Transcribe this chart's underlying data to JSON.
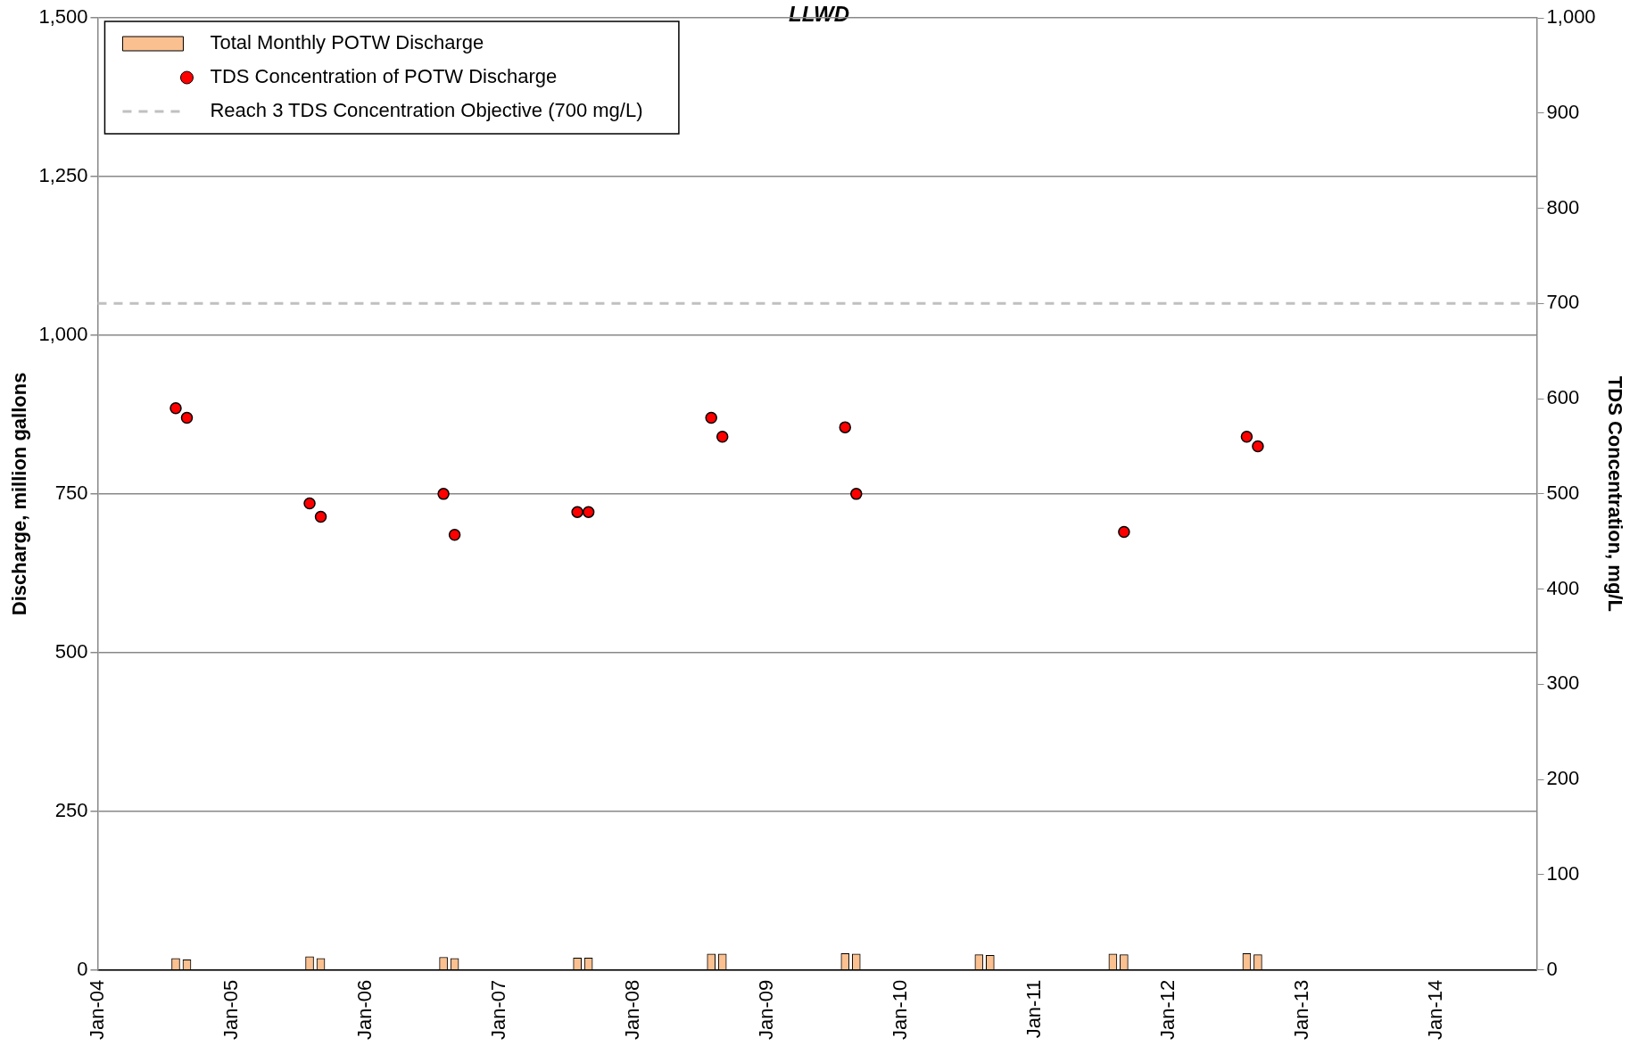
{
  "chart_data": {
    "type": "bar",
    "title": "LLWD",
    "ylabel": "Discharge, million gallons",
    "y2label": "TDS Concentration, mg/L",
    "x": [
      "2004-08",
      "2004-09",
      "2005-08",
      "2005-09",
      "2006-08",
      "2006-09",
      "2007-08",
      "2007-09",
      "2008-08",
      "2008-09",
      "2009-08",
      "2009-09",
      "2010-08",
      "2010-09",
      "2011-08",
      "2011-09",
      "2012-08",
      "2012-09"
    ],
    "series": [
      {
        "name": "Total Monthly POTW Discharge",
        "color": "#fac090",
        "values": [
          18,
          16,
          21,
          18,
          20,
          18,
          19,
          19,
          25,
          25,
          26,
          25,
          24,
          23,
          25,
          24,
          26,
          24
        ]
      },
      {
        "name": "TDS Concentration of POTW Discharge",
        "type": "scatter",
        "axis": "y2",
        "color": "#ff0000",
        "marker": "circle",
        "values": [
          590,
          580,
          490,
          476,
          500,
          457,
          481,
          481,
          580,
          560,
          570,
          500,
          null,
          null,
          null,
          460,
          560,
          550
        ]
      }
    ],
    "xlim": [
      "2004-01",
      "2014-10"
    ],
    "xticks": [
      {
        "value": "2004-01",
        "label": "Jan-04"
      },
      {
        "value": "2005-01",
        "label": "Jan-05"
      },
      {
        "value": "2006-01",
        "label": "Jan-06"
      },
      {
        "value": "2007-01",
        "label": "Jan-07"
      },
      {
        "value": "2008-01",
        "label": "Jan-08"
      },
      {
        "value": "2009-01",
        "label": "Jan-09"
      },
      {
        "value": "2010-01",
        "label": "Jan-10"
      },
      {
        "value": "2011-01",
        "label": "Jan-11"
      },
      {
        "value": "2012-01",
        "label": "Jan-12"
      },
      {
        "value": "2013-01",
        "label": "Jan-13"
      },
      {
        "value": "2014-01",
        "label": "Jan-14"
      }
    ],
    "ylim": [
      0,
      1500
    ],
    "yticks": [
      0,
      250,
      500,
      750,
      {
        "value": 1000,
        "label": "1,000"
      },
      {
        "value": 1250,
        "label": "1,250"
      },
      {
        "value": 1500,
        "label": "1,500"
      }
    ],
    "y2lim": [
      0,
      1000
    ],
    "y2ticks": [
      0,
      100,
      200,
      300,
      400,
      500,
      600,
      700,
      800,
      900,
      {
        "value": 1000,
        "label": "1,000"
      }
    ],
    "ref_lines": [
      {
        "axis": "y2",
        "value": 700,
        "label": "Reach 3 TDS Concentration Objective (700 mg/L)",
        "color": "#c0c0c0",
        "line_style": "dashed"
      }
    ],
    "grid": "y",
    "legend": "top left"
  }
}
